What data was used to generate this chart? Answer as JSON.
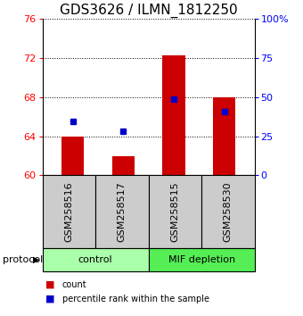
{
  "title": "GDS3626 / ILMN_1812250",
  "samples": [
    "GSM258516",
    "GSM258517",
    "GSM258515",
    "GSM258530"
  ],
  "bar_values": [
    64.0,
    62.0,
    72.3,
    68.0
  ],
  "bar_base": 60,
  "blue_values": [
    65.5,
    64.5,
    67.8,
    66.5
  ],
  "bar_color": "#cc0000",
  "blue_color": "#0000cc",
  "ylim_left": [
    60,
    76
  ],
  "ylim_right": [
    0,
    100
  ],
  "yticks_left": [
    60,
    64,
    68,
    72,
    76
  ],
  "yticks_right": [
    0,
    25,
    50,
    75,
    100
  ],
  "ytick_labels_right": [
    "0",
    "25",
    "50",
    "75",
    "100%"
  ],
  "groups": [
    {
      "label": "control",
      "samples": [
        0,
        1
      ],
      "color": "#aaffaa"
    },
    {
      "label": "MIF depletion",
      "samples": [
        2,
        3
      ],
      "color": "#55ee55"
    }
  ],
  "protocol_label": "protocol",
  "legend_items": [
    {
      "label": "count",
      "color": "#cc0000"
    },
    {
      "label": "percentile rank within the sample",
      "color": "#0000cc"
    }
  ],
  "bar_width": 0.45,
  "title_fontsize": 11,
  "label_fontsize": 8,
  "tick_fontsize": 8,
  "sample_box_color": "#cccccc"
}
